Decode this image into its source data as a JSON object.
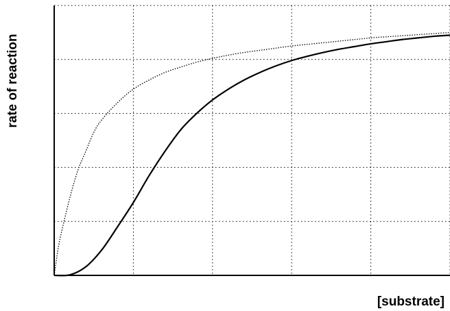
{
  "chart_data": {
    "type": "line",
    "xlabel": "[substrate]",
    "ylabel": "rate of reaction",
    "xlim": [
      0,
      5
    ],
    "ylim": [
      0,
      5
    ],
    "grid": true,
    "series": [
      {
        "style": "solid",
        "color": "#000000",
        "x": [
          0,
          0.2,
          0.4,
          0.6,
          0.8,
          1.0,
          1.2,
          1.4,
          1.6,
          1.8,
          2.0,
          2.2,
          2.4,
          2.6,
          2.8,
          3.0,
          3.2,
          3.4,
          3.6,
          3.8,
          4.0,
          4.2,
          4.4,
          4.6,
          4.8,
          5.0
        ],
        "y": [
          0,
          0.01,
          0.16,
          0.47,
          0.9,
          1.35,
          1.85,
          2.3,
          2.7,
          3.0,
          3.25,
          3.45,
          3.62,
          3.76,
          3.88,
          3.98,
          4.06,
          4.13,
          4.19,
          4.24,
          4.29,
          4.33,
          4.37,
          4.4,
          4.43,
          4.45
        ]
      },
      {
        "style": "dotted",
        "color": "#000000",
        "x": [
          0,
          0.05,
          0.1,
          0.2,
          0.3,
          0.4,
          0.5,
          0.6,
          0.8,
          1.0,
          1.2,
          1.4,
          1.6,
          1.8,
          2.0,
          2.2,
          2.4,
          2.6,
          2.8,
          3.0,
          3.2,
          3.4,
          3.6,
          3.8,
          4.0,
          4.2,
          4.4,
          4.6,
          4.8,
          5.0
        ],
        "y": [
          0,
          0.5,
          0.85,
          1.45,
          1.95,
          2.3,
          2.65,
          2.88,
          3.2,
          3.45,
          3.62,
          3.76,
          3.86,
          3.95,
          4.02,
          4.08,
          4.13,
          4.17,
          4.21,
          4.25,
          4.28,
          4.31,
          4.34,
          4.37,
          4.4,
          4.42,
          4.44,
          4.46,
          4.48,
          4.5
        ]
      }
    ]
  }
}
